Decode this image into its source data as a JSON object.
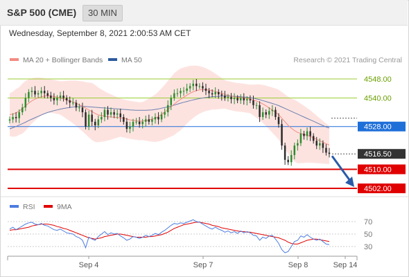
{
  "header": {
    "instrument": "S&P 500 (CME)",
    "timeframe": "30 MIN",
    "timestamp": "Wednesday, September 8, 2021 2:00:53 AM CET"
  },
  "legend": {
    "items": [
      {
        "label": "MA 20 + Bollinger Bands",
        "color": "#f28b82"
      },
      {
        "label": "MA 50",
        "color": "#2d5a9e"
      }
    ],
    "credit": "Research © 2021 Trading Central"
  },
  "chart_data": [
    {
      "type": "candlestick",
      "title": "",
      "ylim": [
        4502,
        4550
      ],
      "x_ticks": [
        "Sep 4",
        "Sep 7",
        "Sep 8",
        "Sep 14"
      ],
      "levels": [
        {
          "value": 4548.0,
          "label": "4548.00",
          "kind": "resistance",
          "color": "#9acd32"
        },
        {
          "value": 4540.0,
          "label": "4540.00",
          "kind": "resistance",
          "color": "#9acd32"
        },
        {
          "value": 4528.0,
          "label": "4528.00",
          "kind": "pivot",
          "color": "#1f6fd9"
        },
        {
          "value": 4516.5,
          "label": "4516.50",
          "kind": "last-price",
          "color": "#333333"
        },
        {
          "value": 4510.0,
          "label": "4510.00",
          "kind": "support",
          "color": "#e00000"
        },
        {
          "value": 4502.0,
          "label": "4502.00",
          "kind": "support",
          "color": "#e00000"
        }
      ],
      "last_price": 4516.5,
      "forecast": "down",
      "close": [
        4531,
        4532,
        4531.5,
        4534,
        4536,
        4540,
        4542.5,
        4543,
        4541.5,
        4542,
        4543,
        4542,
        4541,
        4540,
        4539,
        4540,
        4541,
        4540,
        4539,
        4538,
        4538,
        4536,
        4536,
        4534,
        4528,
        4533,
        4530,
        4528.5,
        4531,
        4532,
        4535,
        4533,
        4534,
        4533,
        4533.5,
        4532,
        4530,
        4527,
        4528,
        4530,
        4530,
        4529,
        4530,
        4531,
        4530,
        4531,
        4532,
        4531,
        4533,
        4534,
        4537,
        4540,
        4542,
        4542,
        4543,
        4543,
        4544,
        4545,
        4546,
        4545,
        4545,
        4544,
        4543,
        4542,
        4541.5,
        4542.5,
        4541.5,
        4541,
        4540,
        4540.5,
        4539.5,
        4540,
        4539,
        4540,
        4539,
        4539.5,
        4539,
        4537,
        4537,
        4532,
        4534,
        4533,
        4534.5,
        4535,
        4532,
        4529,
        4520,
        4514,
        4513,
        4516,
        4520,
        4521,
        4525,
        4524,
        4526,
        4524,
        4522,
        4520,
        4521,
        4519,
        4517,
        4516.5
      ],
      "ma20": [
        4533,
        4533.2,
        4533.8,
        4534.5,
        4535.5,
        4536.7,
        4537.8,
        4538.8,
        4539.5,
        4540.1,
        4540.5,
        4540.8,
        4540.9,
        4540.8,
        4540.6,
        4540.3,
        4540,
        4539.6,
        4539.2,
        4538.8,
        4538.3,
        4537.8,
        4537.1,
        4536.5,
        4535.7,
        4535,
        4534.3,
        4533.5,
        4532.9,
        4532.6,
        4532.3,
        4532.1,
        4532,
        4531.9,
        4531.8,
        4531.7,
        4531.4,
        4531.1,
        4530.8,
        4530.6,
        4530.4,
        4530.2,
        4530.3,
        4530.5,
        4530.8,
        4531.1,
        4531.5,
        4532.2,
        4533.1,
        4534.1,
        4535.2,
        4536.3,
        4537.4,
        4538.5,
        4539.4,
        4540.3,
        4541.2,
        4542,
        4542.6,
        4543.1,
        4543.4,
        4543.5,
        4543.5,
        4543.3,
        4543.1,
        4542.7,
        4542.3,
        4541.9,
        4541.5,
        4541.1,
        4540.8,
        4540.5,
        4540.3,
        4540.2,
        4540,
        4539.8,
        4539.6,
        4539.1,
        4538.7,
        4538.2,
        4537.5,
        4536.7,
        4535.8,
        4534.9,
        4534,
        4533,
        4531.5,
        4530,
        4528.5,
        4527.3,
        4526.3,
        4525.5,
        4525.1,
        4524.7,
        4524.3,
        4523.8,
        4523.2,
        4522.6,
        4522,
        4521.4,
        4520.8,
        4520.2
      ],
      "ma50": [
        4527,
        4527.5,
        4528,
        4528.6,
        4529.2,
        4529.8,
        4530.5,
        4531.1,
        4531.7,
        4532.3,
        4532.9,
        4533.4,
        4533.9,
        4534.3,
        4534.7,
        4535,
        4535.3,
        4535.6,
        4535.8,
        4536,
        4536.2,
        4536.3,
        4536.4,
        4536.4,
        4536.4,
        4536.3,
        4536.2,
        4536.1,
        4536,
        4535.9,
        4535.8,
        4535.7,
        4535.6,
        4535.5,
        4535.4,
        4535.3,
        4535.2,
        4535.1,
        4535,
        4534.9,
        4534.8,
        4534.8,
        4534.8,
        4534.8,
        4534.9,
        4535,
        4535.2,
        4535.4,
        4535.7,
        4536,
        4536.3,
        4536.6,
        4537,
        4537.4,
        4537.8,
        4538.2,
        4538.5,
        4538.9,
        4539.2,
        4539.5,
        4539.8,
        4540,
        4540.2,
        4540.4,
        4540.5,
        4540.6,
        4540.7,
        4540.8,
        4540.8,
        4540.8,
        4540.8,
        4540.7,
        4540.6,
        4540.5,
        4540.4,
        4540.3,
        4540.1,
        4539.9,
        4539.6,
        4539.3,
        4538.9,
        4538.5,
        4538.1,
        4537.7,
        4537.3,
        4536.8,
        4536.2,
        4535.6,
        4535,
        4534.4,
        4533.8,
        4533.2,
        4532.6,
        4532,
        4531.4,
        4530.8,
        4530.2,
        4529.6,
        4529,
        4528.4,
        4527.8,
        4527.4
      ],
      "bollinger_width": [
        9,
        9.5,
        10,
        10,
        10.5,
        10.5,
        10,
        9.5,
        9,
        8.5,
        8,
        7.5,
        7,
        7,
        7,
        7,
        7,
        7.5,
        8,
        8.5,
        9,
        9.5,
        10,
        10.5,
        11,
        11.5,
        12,
        12,
        11.5,
        11,
        10.5,
        10,
        9.5,
        9,
        8.5,
        8,
        8,
        8,
        8,
        8,
        8,
        8,
        8,
        8.5,
        9,
        9.5,
        10,
        10.5,
        11,
        11.5,
        12,
        12.5,
        13,
        13,
        13,
        12.5,
        12,
        11.5,
        11,
        10.5,
        10,
        9.5,
        9,
        8.5,
        8,
        7.5,
        7,
        6.5,
        6,
        6,
        6,
        6,
        6,
        6,
        6,
        6,
        6,
        6.5,
        7,
        7.5,
        8,
        8.5,
        9,
        9.5,
        10,
        10.5,
        11,
        11.5,
        12,
        12.5,
        13,
        13,
        12.5,
        12,
        11.5,
        11,
        10.5,
        10,
        9.5,
        9,
        8.5,
        8
      ]
    },
    {
      "type": "line",
      "title": "",
      "ylim": [
        20,
        80
      ],
      "y_ticks": [
        70,
        50,
        30
      ],
      "series": [
        {
          "name": "RSI",
          "color": "#4c7ce0",
          "values": [
            58,
            61,
            57,
            60,
            63,
            66,
            68,
            69,
            66,
            65,
            67,
            64,
            63,
            60,
            57,
            56,
            58,
            55,
            52,
            51,
            50,
            46,
            44,
            40,
            28,
            45,
            42,
            40,
            46,
            50,
            54,
            49,
            52,
            50,
            51,
            47,
            44,
            40,
            42,
            46,
            45,
            43,
            45,
            48,
            46,
            48,
            51,
            49,
            53,
            56,
            60,
            64,
            67,
            66,
            68,
            67,
            69,
            71,
            73,
            70,
            69,
            66,
            63,
            60,
            58,
            61,
            58,
            56,
            53,
            55,
            52,
            54,
            51,
            55,
            52,
            54,
            52,
            48,
            47,
            40,
            45,
            43,
            47,
            48,
            42,
            35,
            25,
            20,
            22,
            30,
            38,
            40,
            47,
            45,
            49,
            45,
            42,
            40,
            42,
            38,
            34,
            33
          ]
        },
        {
          "name": "9MA",
          "color": "#e00000",
          "values": [
            56,
            57,
            57,
            58,
            59,
            60,
            61,
            63,
            64,
            65,
            66,
            66,
            66,
            65,
            64,
            62,
            61,
            59,
            58,
            56,
            54,
            52,
            50,
            48,
            46,
            44,
            43,
            42,
            43,
            44,
            46,
            47,
            48,
            49,
            50,
            50,
            49,
            48,
            47,
            46,
            45,
            45,
            45,
            45,
            46,
            46,
            47,
            48,
            49,
            51,
            53,
            56,
            59,
            61,
            63,
            65,
            66,
            67,
            68,
            69,
            69,
            68,
            67,
            66,
            64,
            63,
            62,
            60,
            59,
            58,
            57,
            56,
            55,
            54,
            54,
            53,
            53,
            52,
            51,
            50,
            49,
            48,
            47,
            46,
            45,
            44,
            42,
            40,
            37,
            35,
            34,
            34,
            36,
            38,
            40,
            41,
            42,
            42,
            41,
            40,
            39,
            38
          ]
        }
      ]
    }
  ],
  "rsi_legend": {
    "items": [
      {
        "label": "RSI",
        "color": "#4c7ce0"
      },
      {
        "label": "9MA",
        "color": "#e00000"
      }
    ]
  }
}
